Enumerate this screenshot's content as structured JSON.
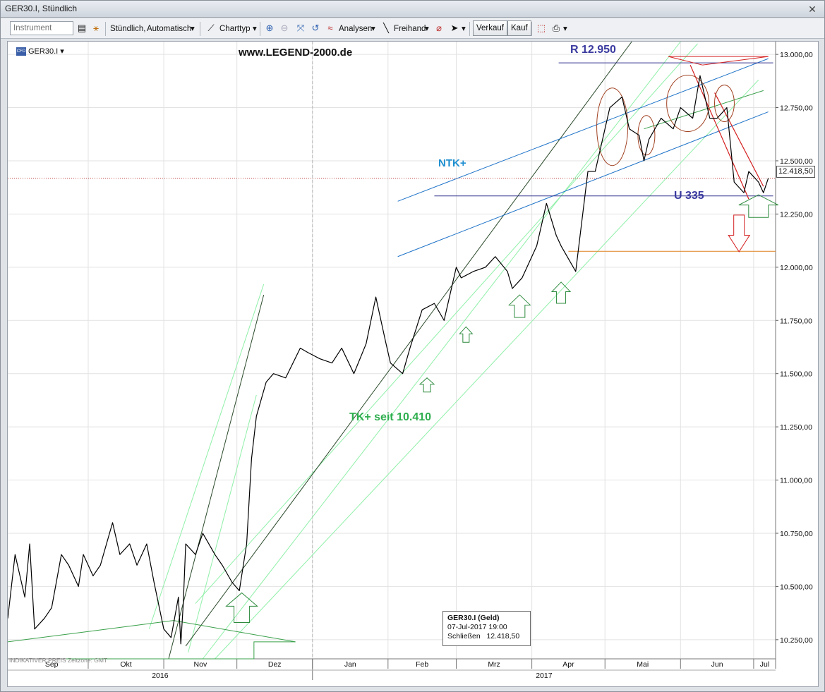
{
  "window": {
    "title": "GER30.I, Stündlich"
  },
  "toolbar": {
    "instrument_placeholder": "Instrument",
    "timeframe_label": "Stündlich,",
    "scale_label": "Automatisch",
    "charttype_label": "Charttyp",
    "analyses_label": "Analysen",
    "freehand_label": "Freihand",
    "sell_label": "Verkauf",
    "buy_label": "Kauf"
  },
  "chart_header": {
    "instrument": "GER30.I",
    "badge": "CFD"
  },
  "annotations": {
    "website": "www.LEGEND-2000.de",
    "resistance": "R 12.950",
    "ntk": "NTK+",
    "support": "U 335",
    "tk": "TK+ seit 10.410"
  },
  "price_tag": "12.418,50",
  "info_box": {
    "title": "GER30.I (Geld)",
    "datetime": "07-Jul-2017 19:00",
    "close_label": "Schließen",
    "close_value": "12.418,50"
  },
  "footer_note": "INDIKATIVER PREIS   Zeitzone: GMT",
  "colors": {
    "price_line": "#000000",
    "trend_dark": "#2b4a2b",
    "channel_light": "#8ff0a8",
    "channel_blue": "#1f73c8",
    "resistance_blue": "#33338f",
    "red": "#d42020",
    "orange": "#e08020",
    "arrow_green": "#2e8b3e",
    "ellipse": "#a04020"
  },
  "chart_data": {
    "type": "line",
    "title": "",
    "x_axis_months": [
      "Sep",
      "Okt",
      "Nov",
      "Dez",
      "Jan",
      "Feb",
      "Mrz",
      "Apr",
      "Mai",
      "Jun",
      "Jul"
    ],
    "x_axis_years": [
      "2016",
      "2017"
    ],
    "y_ticks": [
      "13.000,00",
      "12.750,00",
      "12.500,00",
      "12.250,00",
      "12.000,00",
      "11.750,00",
      "11.500,00",
      "11.250,00",
      "11.000,00",
      "10.750,00",
      "10.500,00",
      "10.250,00"
    ],
    "ylim": [
      10160,
      13060
    ],
    "xlim": [
      "2016-08-29",
      "2017-07-10"
    ],
    "grid": true,
    "series": [
      {
        "x": [
          "2016-08-29",
          "2016-09-01",
          "2016-09-05",
          "2016-09-07",
          "2016-09-09",
          "2016-09-13",
          "2016-09-16",
          "2016-09-20",
          "2016-09-23",
          "2016-09-27",
          "2016-09-29",
          "2016-10-03",
          "2016-10-06",
          "2016-10-11",
          "2016-10-14",
          "2016-10-18",
          "2016-10-21",
          "2016-10-25",
          "2016-10-28",
          "2016-11-01",
          "2016-11-04",
          "2016-11-07",
          "2016-11-08",
          "2016-11-09",
          "2016-11-10",
          "2016-11-14",
          "2016-11-17",
          "2016-11-22",
          "2016-11-25",
          "2016-11-29",
          "2016-12-02",
          "2016-12-05",
          "2016-12-07",
          "2016-12-09",
          "2016-12-13",
          "2016-12-16",
          "2016-12-21",
          "2016-12-27",
          "2016-12-30",
          "2017-01-04",
          "2017-01-09",
          "2017-01-13",
          "2017-01-18",
          "2017-01-23",
          "2017-01-27",
          "2017-01-31",
          "2017-02-02",
          "2017-02-07",
          "2017-02-10",
          "2017-02-15",
          "2017-02-20",
          "2017-02-24",
          "2017-03-01",
          "2017-03-03",
          "2017-03-08",
          "2017-03-13",
          "2017-03-17",
          "2017-03-22",
          "2017-03-24",
          "2017-03-28",
          "2017-04-03",
          "2017-04-07",
          "2017-04-11",
          "2017-04-13",
          "2017-04-18",
          "2017-04-19",
          "2017-04-24",
          "2017-04-27",
          "2017-05-03",
          "2017-05-08",
          "2017-05-11",
          "2017-05-15",
          "2017-05-17",
          "2017-05-19",
          "2017-05-24",
          "2017-05-29",
          "2017-06-01",
          "2017-06-06",
          "2017-06-09",
          "2017-06-13",
          "2017-06-16",
          "2017-06-20",
          "2017-06-23",
          "2017-06-27",
          "2017-06-29",
          "2017-07-03",
          "2017-07-05",
          "2017-07-07"
        ],
        "values": [
          10350,
          10650,
          10450,
          10700,
          10300,
          10350,
          10400,
          10650,
          10600,
          10500,
          10650,
          10550,
          10600,
          10800,
          10650,
          10700,
          10600,
          10700,
          10520,
          10300,
          10260,
          10450,
          10230,
          10420,
          10700,
          10650,
          10750,
          10650,
          10600,
          10520,
          10480,
          10700,
          11100,
          11300,
          11460,
          11500,
          11480,
          11620,
          11600,
          11570,
          11550,
          11620,
          11500,
          11640,
          11860,
          11650,
          11550,
          11500,
          11620,
          11800,
          11830,
          11750,
          12000,
          11950,
          11980,
          12000,
          12050,
          11980,
          11900,
          11950,
          12100,
          12300,
          12150,
          12100,
          12000,
          11980,
          12450,
          12450,
          12750,
          12800,
          12650,
          12620,
          12500,
          12600,
          12700,
          12650,
          12750,
          12700,
          12900,
          12700,
          12700,
          12750,
          12400,
          12350,
          12450,
          12400,
          12350,
          12418
        ]
      }
    ]
  }
}
